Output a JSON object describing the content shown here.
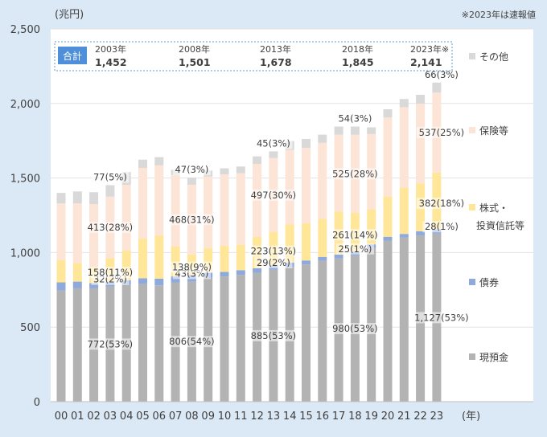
{
  "chart_data": {
    "type": "bar",
    "stacked": true,
    "unit_label": "(兆円)",
    "note": "※2023年は速報値",
    "x_axis_unit": "(年)",
    "ylim": [
      0,
      2500
    ],
    "yticks": [
      "0",
      "500",
      "1,000",
      "1,500",
      "2,000",
      "2,500"
    ],
    "categories": [
      "00",
      "01",
      "02",
      "03",
      "04",
      "05",
      "06",
      "07",
      "08",
      "09",
      "10",
      "11",
      "12",
      "13",
      "14",
      "15",
      "16",
      "17",
      "18",
      "19",
      "20",
      "21",
      "22",
      "23"
    ],
    "series": [
      {
        "name": "現預金",
        "color": "#b3b3b3",
        "values": [
          745,
          760,
          760,
          772,
          785,
          790,
          780,
          800,
          806,
          830,
          840,
          850,
          865,
          885,
          905,
          920,
          945,
          960,
          980,
          1030,
          1080,
          1100,
          1115,
          1127
        ]
      },
      {
        "name": "債券",
        "color": "#8ea9db",
        "values": [
          55,
          45,
          35,
          32,
          30,
          38,
          45,
          40,
          43,
          35,
          30,
          32,
          30,
          29,
          28,
          27,
          26,
          26,
          25,
          25,
          26,
          25,
          28,
          28
        ]
      },
      {
        "name": "株式・投資信託等",
        "color": "#ffe699",
        "values": [
          150,
          125,
          110,
          158,
          200,
          265,
          290,
          200,
          138,
          165,
          175,
          170,
          210,
          223,
          255,
          250,
          255,
          290,
          261,
          235,
          270,
          310,
          320,
          382
        ]
      },
      {
        "name": "保険等",
        "color": "#fce4d6",
        "values": [
          380,
          400,
          420,
          413,
          440,
          475,
          470,
          480,
          468,
          480,
          480,
          480,
          490,
          497,
          500,
          505,
          510,
          515,
          525,
          505,
          530,
          540,
          535,
          537
        ]
      },
      {
        "name": "その他",
        "color": "#d9d9d9",
        "values": [
          70,
          80,
          80,
          77,
          85,
          55,
          55,
          35,
          47,
          40,
          40,
          45,
          50,
          45,
          60,
          60,
          55,
          54,
          54,
          45,
          55,
          55,
          60,
          66
        ]
      }
    ],
    "data_labels": [
      {
        "category": "03",
        "series": "現預金",
        "text": "772(53%)"
      },
      {
        "category": "03",
        "series": "債券",
        "text": "32(2%)"
      },
      {
        "category": "03",
        "series": "株式・投資信託等",
        "text": "158(11%)"
      },
      {
        "category": "03",
        "series": "保険等",
        "text": "413(28%)"
      },
      {
        "category": "03",
        "series": "その他",
        "text": "77(5%)"
      },
      {
        "category": "08",
        "series": "現預金",
        "text": "806(54%)"
      },
      {
        "category": "08",
        "series": "債券",
        "text": "43(3%)"
      },
      {
        "category": "08",
        "series": "株式・投資信託等",
        "text": "138(9%)"
      },
      {
        "category": "08",
        "series": "保険等",
        "text": "468(31%)"
      },
      {
        "category": "08",
        "series": "その他",
        "text": "47(3%)"
      },
      {
        "category": "13",
        "series": "現預金",
        "text": "885(53%)"
      },
      {
        "category": "13",
        "series": "債券",
        "text": "29(2%)"
      },
      {
        "category": "13",
        "series": "株式・投資信託等",
        "text": "223(13%)"
      },
      {
        "category": "13",
        "series": "保険等",
        "text": "497(30%)"
      },
      {
        "category": "13",
        "series": "その他",
        "text": "45(3%)"
      },
      {
        "category": "18",
        "series": "現預金",
        "text": "980(53%)"
      },
      {
        "category": "18",
        "series": "債券",
        "text": "25(1%)"
      },
      {
        "category": "18",
        "series": "株式・投資信託等",
        "text": "261(14%)"
      },
      {
        "category": "18",
        "series": "保険等",
        "text": "525(28%)"
      },
      {
        "category": "18",
        "series": "その他",
        "text": "54(3%)"
      },
      {
        "category": "23",
        "series": "現預金",
        "text": "1,127(53%)"
      },
      {
        "category": "23",
        "series": "債券",
        "text": "28(1%)"
      },
      {
        "category": "23",
        "series": "株式・投資信託等",
        "text": "382(18%)"
      },
      {
        "category": "23",
        "series": "保険等",
        "text": "537(25%)"
      },
      {
        "category": "23",
        "series": "その他",
        "text": "66(3%)"
      }
    ],
    "legend": [
      {
        "series": "その他",
        "text": "その他"
      },
      {
        "series": "保険等",
        "text": "保険等"
      },
      {
        "series": "株式・投資信託等",
        "lines": [
          "株式・",
          "投資信託等"
        ]
      },
      {
        "series": "債券",
        "text": "債券"
      },
      {
        "series": "現預金",
        "text": "現預金"
      }
    ],
    "legend_position": "right",
    "summary": {
      "label": "合計",
      "items": [
        {
          "year": "2003年",
          "value": "1,452"
        },
        {
          "year": "2008年",
          "value": "1,501"
        },
        {
          "year": "2013年",
          "value": "1,678"
        },
        {
          "year": "2018年",
          "value": "1,845"
        },
        {
          "year": "2023年※",
          "value": "2,141"
        }
      ]
    }
  }
}
